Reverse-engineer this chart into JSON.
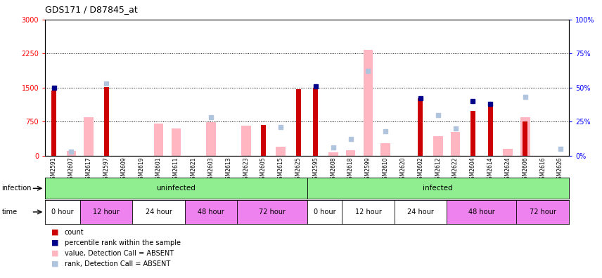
{
  "title": "GDS171 / D87845_at",
  "samples": [
    "GSM2591",
    "GSM2607",
    "GSM2617",
    "GSM2597",
    "GSM2609",
    "GSM2619",
    "GSM2601",
    "GSM2611",
    "GSM2621",
    "GSM2603",
    "GSM2613",
    "GSM2623",
    "GSM2605",
    "GSM2615",
    "GSM2625",
    "GSM2595",
    "GSM2608",
    "GSM2618",
    "GSM2599",
    "GSM2610",
    "GSM2620",
    "GSM2602",
    "GSM2612",
    "GSM2622",
    "GSM2604",
    "GSM2614",
    "GSM2624",
    "GSM2606",
    "GSM2616",
    "GSM2626"
  ],
  "count": [
    1430,
    0,
    0,
    1510,
    0,
    0,
    0,
    0,
    0,
    0,
    0,
    0,
    680,
    0,
    1460,
    1490,
    0,
    0,
    0,
    0,
    0,
    1260,
    0,
    0,
    980,
    1100,
    0,
    750,
    0,
    0
  ],
  "rank_pct": [
    50,
    0,
    0,
    0,
    0,
    0,
    0,
    0,
    0,
    0,
    0,
    0,
    0,
    0,
    0,
    51,
    0,
    0,
    0,
    0,
    0,
    42,
    0,
    0,
    40,
    38,
    0,
    0,
    0,
    0
  ],
  "value_absent": [
    0,
    100,
    840,
    0,
    0,
    0,
    710,
    600,
    0,
    740,
    0,
    660,
    0,
    190,
    0,
    0,
    70,
    120,
    2330,
    280,
    0,
    0,
    430,
    520,
    0,
    0,
    150,
    840,
    0,
    0
  ],
  "rank_absent": [
    0,
    3,
    0,
    53,
    0,
    0,
    0,
    0,
    0,
    28,
    0,
    0,
    0,
    21,
    0,
    0,
    6,
    12,
    62,
    18,
    0,
    0,
    30,
    20,
    0,
    0,
    0,
    43,
    0,
    5
  ],
  "ylim_left": [
    0,
    3000
  ],
  "ylim_right": [
    0,
    100
  ],
  "yticks_left": [
    0,
    750,
    1500,
    2250,
    3000
  ],
  "yticks_right": [
    0,
    25,
    50,
    75,
    100
  ],
  "color_count": "#CC0000",
  "color_rank": "#00008B",
  "color_value_absent": "#FFB6C1",
  "color_rank_absent": "#B0C4DE",
  "time_bands": [
    {
      "label": "0 hour",
      "start": 0,
      "end": 2,
      "color": "#FFFFFF"
    },
    {
      "label": "12 hour",
      "start": 2,
      "end": 5,
      "color": "#EE82EE"
    },
    {
      "label": "24 hour",
      "start": 5,
      "end": 8,
      "color": "#FFFFFF"
    },
    {
      "label": "48 hour",
      "start": 8,
      "end": 11,
      "color": "#EE82EE"
    },
    {
      "label": "72 hour",
      "start": 11,
      "end": 15,
      "color": "#EE82EE"
    },
    {
      "label": "0 hour",
      "start": 15,
      "end": 17,
      "color": "#FFFFFF"
    },
    {
      "label": "12 hour",
      "start": 17,
      "end": 20,
      "color": "#FFFFFF"
    },
    {
      "label": "24 hour",
      "start": 20,
      "end": 23,
      "color": "#FFFFFF"
    },
    {
      "label": "48 hour",
      "start": 23,
      "end": 27,
      "color": "#EE82EE"
    },
    {
      "label": "72 hour",
      "start": 27,
      "end": 30,
      "color": "#EE82EE"
    }
  ],
  "infection_bands": [
    {
      "label": "uninfected",
      "start": 0,
      "end": 15,
      "color": "#90EE90"
    },
    {
      "label": "infected",
      "start": 15,
      "end": 30,
      "color": "#90EE90"
    }
  ],
  "legend_items": [
    {
      "color": "#CC0000",
      "label": "count"
    },
    {
      "color": "#00008B",
      "label": "percentile rank within the sample"
    },
    {
      "color": "#FFB6C1",
      "label": "value, Detection Call = ABSENT"
    },
    {
      "color": "#B0C4DE",
      "label": "rank, Detection Call = ABSENT"
    }
  ]
}
